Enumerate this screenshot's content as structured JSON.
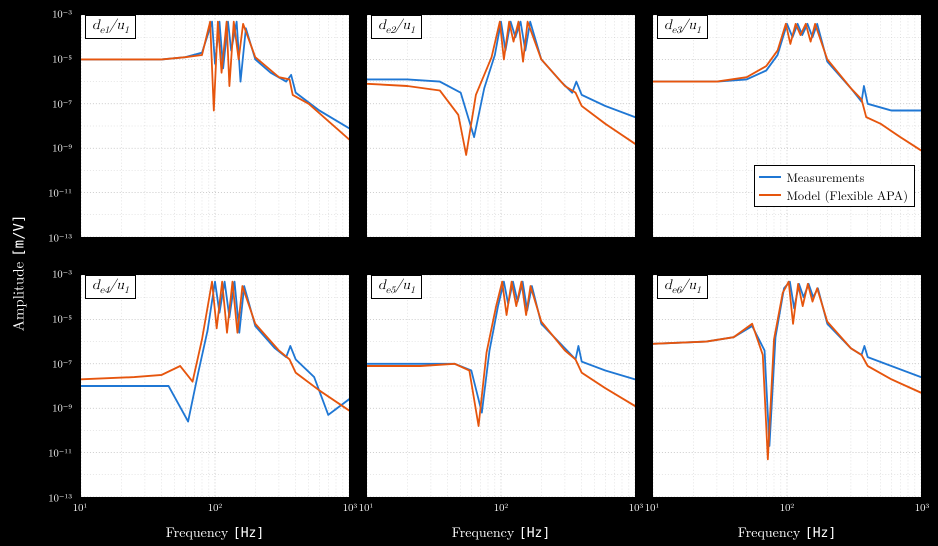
{
  "figure": {
    "background_color": "#000000",
    "panel_background": "#ffffff",
    "grid_color": "#cccccc",
    "axis_color": "#000000",
    "line_width": 1.8,
    "ylabel": "Amplitude",
    "ylabel_unit": "[m/V]",
    "xlabel": "Frequency",
    "xlabel_unit": "[Hz]",
    "xscale": "log",
    "xlim": [
      10,
      1000
    ],
    "xticks_major": [
      10,
      100,
      1000
    ],
    "xtick_labels": [
      "10¹",
      "10²",
      "10³"
    ],
    "ylim": [
      -13,
      -3
    ],
    "yscale": "log_magnitude",
    "yticks": [
      -13,
      -11,
      -9,
      -7,
      -5,
      -3
    ],
    "ytick_labels": [
      "10⁻¹³",
      "10⁻¹¹",
      "10⁻⁹",
      "10⁻⁷",
      "10⁻⁵",
      "10⁻³"
    ],
    "series_colors": {
      "measurements": "#1f77d4",
      "model": "#e6550d"
    },
    "legend": {
      "items": [
        {
          "label": "Measurements",
          "color": "#1f77d4"
        },
        {
          "label": "Model (Flexible APA)",
          "color": "#e6550d"
        }
      ],
      "panel_index": 2
    },
    "panels": [
      {
        "title_tex": "d_{e1}/u_1",
        "title_html": "d<sub>e1</sub>/u<sub>1</sub>",
        "meas": [
          [
            10,
            -5.0
          ],
          [
            20,
            -5.0
          ],
          [
            40,
            -5.0
          ],
          [
            60,
            -4.9
          ],
          [
            80,
            -4.7
          ],
          [
            95,
            -3.3
          ],
          [
            100,
            -5.2
          ],
          [
            108,
            -3.3
          ],
          [
            115,
            -5.4
          ],
          [
            125,
            -3.3
          ],
          [
            132,
            -4.6
          ],
          [
            145,
            -3.3
          ],
          [
            155,
            -6.0
          ],
          [
            170,
            -3.6
          ],
          [
            200,
            -5.0
          ],
          [
            260,
            -5.6
          ],
          [
            340,
            -6.0
          ],
          [
            370,
            -5.7
          ],
          [
            400,
            -6.5
          ],
          [
            600,
            -7.3
          ],
          [
            1000,
            -8.1
          ]
        ],
        "model": [
          [
            10,
            -5.0
          ],
          [
            20,
            -5.0
          ],
          [
            40,
            -5.0
          ],
          [
            60,
            -4.9
          ],
          [
            80,
            -4.8
          ],
          [
            92,
            -3.3
          ],
          [
            98,
            -7.3
          ],
          [
            105,
            -3.3
          ],
          [
            112,
            -5.6
          ],
          [
            122,
            -3.3
          ],
          [
            128,
            -6.2
          ],
          [
            138,
            -3.3
          ],
          [
            150,
            -5.0
          ],
          [
            162,
            -3.4
          ],
          [
            200,
            -4.9
          ],
          [
            300,
            -5.8
          ],
          [
            360,
            -5.9
          ],
          [
            380,
            -6.6
          ],
          [
            500,
            -7.0
          ],
          [
            1000,
            -8.6
          ]
        ]
      },
      {
        "title_tex": "d_{e2}/u_1",
        "title_html": "d<sub>e2</sub>/u<sub>1</sub>",
        "meas": [
          [
            10,
            -5.9
          ],
          [
            20,
            -5.9
          ],
          [
            35,
            -6.0
          ],
          [
            50,
            -6.5
          ],
          [
            63,
            -8.5
          ],
          [
            75,
            -6.3
          ],
          [
            90,
            -4.8
          ],
          [
            100,
            -3.3
          ],
          [
            108,
            -4.6
          ],
          [
            118,
            -3.3
          ],
          [
            128,
            -4.0
          ],
          [
            140,
            -3.3
          ],
          [
            152,
            -4.6
          ],
          [
            165,
            -3.3
          ],
          [
            200,
            -5.0
          ],
          [
            280,
            -6.0
          ],
          [
            340,
            -6.5
          ],
          [
            365,
            -6.0
          ],
          [
            400,
            -6.6
          ],
          [
            600,
            -7.1
          ],
          [
            1000,
            -7.6
          ]
        ],
        "model": [
          [
            10,
            -6.1
          ],
          [
            20,
            -6.2
          ],
          [
            35,
            -6.4
          ],
          [
            48,
            -7.5
          ],
          [
            55,
            -9.3
          ],
          [
            65,
            -6.6
          ],
          [
            85,
            -4.9
          ],
          [
            98,
            -3.3
          ],
          [
            105,
            -5.0
          ],
          [
            115,
            -3.3
          ],
          [
            124,
            -4.2
          ],
          [
            135,
            -3.3
          ],
          [
            146,
            -5.1
          ],
          [
            158,
            -3.3
          ],
          [
            200,
            -5.0
          ],
          [
            300,
            -6.2
          ],
          [
            360,
            -6.5
          ],
          [
            400,
            -7.1
          ],
          [
            600,
            -7.9
          ],
          [
            1000,
            -8.8
          ]
        ]
      },
      {
        "title_tex": "d_{e3}/u_1",
        "title_html": "d<sub>e3</sub>/u<sub>1</sub>",
        "meas": [
          [
            10,
            -6.0
          ],
          [
            30,
            -6.0
          ],
          [
            50,
            -5.9
          ],
          [
            70,
            -5.5
          ],
          [
            85,
            -4.8
          ],
          [
            100,
            -3.4
          ],
          [
            110,
            -4.0
          ],
          [
            120,
            -3.4
          ],
          [
            130,
            -3.9
          ],
          [
            142,
            -3.4
          ],
          [
            155,
            -4.0
          ],
          [
            168,
            -3.4
          ],
          [
            200,
            -5.1
          ],
          [
            300,
            -6.3
          ],
          [
            360,
            -6.9
          ],
          [
            375,
            -6.2
          ],
          [
            400,
            -7.0
          ],
          [
            600,
            -7.3
          ],
          [
            1000,
            -7.3
          ]
        ],
        "model": [
          [
            10,
            -6.0
          ],
          [
            30,
            -6.0
          ],
          [
            50,
            -5.8
          ],
          [
            70,
            -5.3
          ],
          [
            85,
            -4.6
          ],
          [
            98,
            -3.4
          ],
          [
            106,
            -4.3
          ],
          [
            116,
            -3.4
          ],
          [
            126,
            -3.9
          ],
          [
            138,
            -3.4
          ],
          [
            150,
            -4.2
          ],
          [
            162,
            -3.4
          ],
          [
            200,
            -5.0
          ],
          [
            300,
            -6.3
          ],
          [
            360,
            -6.8
          ],
          [
            390,
            -7.6
          ],
          [
            500,
            -7.9
          ],
          [
            700,
            -8.5
          ],
          [
            1000,
            -9.1
          ]
        ]
      },
      {
        "title_tex": "d_{e4}/u_1",
        "title_html": "d<sub>e4</sub>/u<sub>1</sub>",
        "meas": [
          [
            10,
            -8.0
          ],
          [
            25,
            -8.0
          ],
          [
            45,
            -8.0
          ],
          [
            63,
            -9.6
          ],
          [
            75,
            -7.4
          ],
          [
            88,
            -5.5
          ],
          [
            100,
            -3.3
          ],
          [
            108,
            -4.7
          ],
          [
            118,
            -3.3
          ],
          [
            128,
            -4.9
          ],
          [
            140,
            -3.3
          ],
          [
            152,
            -5.6
          ],
          [
            165,
            -3.5
          ],
          [
            200,
            -5.3
          ],
          [
            280,
            -6.3
          ],
          [
            340,
            -6.7
          ],
          [
            365,
            -6.2
          ],
          [
            400,
            -6.8
          ],
          [
            550,
            -7.6
          ],
          [
            700,
            -9.3
          ],
          [
            1000,
            -8.6
          ]
        ],
        "model": [
          [
            10,
            -7.7
          ],
          [
            25,
            -7.6
          ],
          [
            40,
            -7.5
          ],
          [
            55,
            -7.1
          ],
          [
            68,
            -7.8
          ],
          [
            80,
            -5.9
          ],
          [
            95,
            -3.3
          ],
          [
            103,
            -5.4
          ],
          [
            113,
            -3.3
          ],
          [
            123,
            -5.6
          ],
          [
            135,
            -3.3
          ],
          [
            147,
            -5.6
          ],
          [
            160,
            -3.5
          ],
          [
            200,
            -5.2
          ],
          [
            300,
            -6.4
          ],
          [
            360,
            -6.8
          ],
          [
            400,
            -7.4
          ],
          [
            600,
            -8.2
          ],
          [
            1000,
            -9.1
          ]
        ]
      },
      {
        "title_tex": "d_{e5}/u_1",
        "title_html": "d<sub>e5</sub>/u<sub>1</sub>",
        "meas": [
          [
            10,
            -7.0
          ],
          [
            25,
            -7.0
          ],
          [
            45,
            -7.0
          ],
          [
            60,
            -7.3
          ],
          [
            72,
            -9.2
          ],
          [
            82,
            -6.4
          ],
          [
            95,
            -4.4
          ],
          [
            105,
            -3.3
          ],
          [
            113,
            -4.3
          ],
          [
            123,
            -3.3
          ],
          [
            133,
            -4.2
          ],
          [
            145,
            -3.3
          ],
          [
            157,
            -4.6
          ],
          [
            170,
            -3.5
          ],
          [
            200,
            -5.2
          ],
          [
            300,
            -6.3
          ],
          [
            360,
            -6.8
          ],
          [
            378,
            -6.2
          ],
          [
            400,
            -6.9
          ],
          [
            600,
            -7.3
          ],
          [
            1000,
            -7.7
          ]
        ],
        "model": [
          [
            10,
            -7.1
          ],
          [
            25,
            -7.1
          ],
          [
            45,
            -7.0
          ],
          [
            58,
            -7.3
          ],
          [
            68,
            -9.8
          ],
          [
            78,
            -6.5
          ],
          [
            92,
            -4.4
          ],
          [
            102,
            -3.3
          ],
          [
            110,
            -4.8
          ],
          [
            120,
            -3.3
          ],
          [
            130,
            -4.4
          ],
          [
            142,
            -3.3
          ],
          [
            154,
            -4.8
          ],
          [
            166,
            -3.5
          ],
          [
            200,
            -5.1
          ],
          [
            300,
            -6.4
          ],
          [
            360,
            -6.8
          ],
          [
            400,
            -7.4
          ],
          [
            600,
            -8.1
          ],
          [
            1000,
            -8.9
          ]
        ]
      },
      {
        "title_tex": "d_{e6}/u_1",
        "title_html": "d<sub>e6</sub>/u<sub>1</sub>",
        "meas": [
          [
            10,
            -6.1
          ],
          [
            25,
            -6.0
          ],
          [
            40,
            -5.8
          ],
          [
            55,
            -5.3
          ],
          [
            68,
            -6.4
          ],
          [
            74,
            -10.7
          ],
          [
            82,
            -5.8
          ],
          [
            95,
            -3.6
          ],
          [
            105,
            -3.3
          ],
          [
            113,
            -4.5
          ],
          [
            123,
            -3.4
          ],
          [
            133,
            -4.0
          ],
          [
            145,
            -3.4
          ],
          [
            157,
            -4.0
          ],
          [
            170,
            -3.6
          ],
          [
            200,
            -5.2
          ],
          [
            300,
            -6.3
          ],
          [
            360,
            -6.6
          ],
          [
            378,
            -6.2
          ],
          [
            400,
            -6.7
          ],
          [
            600,
            -7.1
          ],
          [
            1000,
            -7.6
          ]
        ],
        "model": [
          [
            10,
            -6.1
          ],
          [
            25,
            -6.0
          ],
          [
            40,
            -5.8
          ],
          [
            55,
            -5.2
          ],
          [
            66,
            -6.6
          ],
          [
            72,
            -11.3
          ],
          [
            80,
            -5.9
          ],
          [
            93,
            -3.8
          ],
          [
            103,
            -3.3
          ],
          [
            111,
            -5.2
          ],
          [
            121,
            -3.4
          ],
          [
            131,
            -4.4
          ],
          [
            143,
            -3.4
          ],
          [
            155,
            -4.2
          ],
          [
            168,
            -3.6
          ],
          [
            200,
            -5.1
          ],
          [
            300,
            -6.3
          ],
          [
            360,
            -6.6
          ],
          [
            400,
            -7.1
          ],
          [
            600,
            -7.7
          ],
          [
            1000,
            -8.3
          ]
        ]
      }
    ]
  }
}
